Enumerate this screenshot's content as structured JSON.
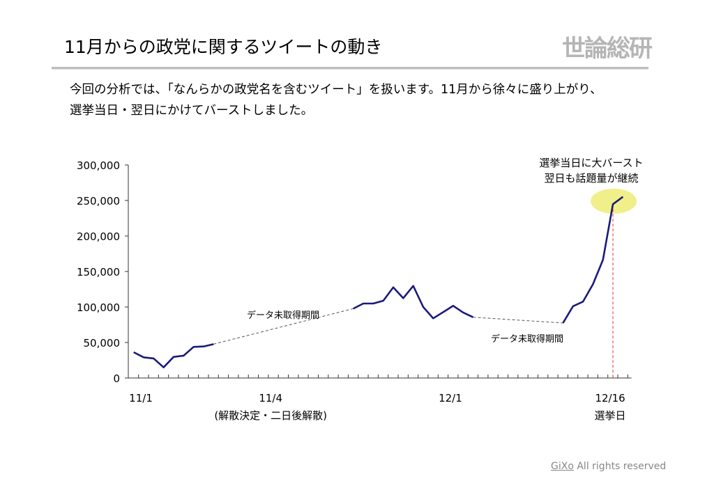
{
  "slide": {
    "title": "11月からの政党に関するツイートの動き",
    "logo": "世論総研",
    "description_line1": "今回の分析では、「なんらかの政党名を含むツイート」を扱います。11月から徐々に盛り上がり、",
    "description_line2": "選挙当日・翌日にかけてバーストしました。",
    "footer_brand": "GiXo",
    "footer_text": " All rights reserved"
  },
  "chart_data": {
    "type": "line",
    "ylim": [
      0,
      300000
    ],
    "yticks": [
      "0",
      "50,000",
      "100,000",
      "150,000",
      "200,000",
      "250,000",
      "300,000"
    ],
    "ytick_values": [
      0,
      50000,
      100000,
      150000,
      200000,
      250000,
      300000
    ],
    "xlim": [
      0,
      50
    ],
    "xtick_labels": [
      {
        "index": 1,
        "label": "11/1",
        "sub": ""
      },
      {
        "index": 14,
        "label": "11/4",
        "sub": "(解散決定・二日後解散)"
      },
      {
        "index": 32,
        "label": "12/1",
        "sub": ""
      },
      {
        "index": 48,
        "label": "12/16",
        "sub": "選挙日"
      }
    ],
    "series": [
      {
        "segments": [
          {
            "start": 0,
            "values": [
              36300,
              29100,
              27500,
              15000,
              29700,
              31400,
              43800,
              44400,
              47700
            ]
          },
          {
            "start": 22,
            "values": [
              97700,
              104900,
              104900,
              108800,
              127700,
              112400,
              129700,
              100000,
              84000,
              92800,
              101700,
              92200,
              85600
            ]
          },
          {
            "start": 43,
            "values": [
              77500,
              101000,
              107500,
              132100,
              166400,
              244800,
              255200
            ]
          }
        ]
      }
    ],
    "gaps": [
      {
        "from": 8,
        "to": 22,
        "label": "データ未取得期間"
      },
      {
        "from": 34,
        "to": 43,
        "label": "データ未取得期間"
      }
    ],
    "election_day_index": 48,
    "annotation": {
      "line1": "選挙当日に大バースト",
      "line2": "翌日も話題量が継続"
    },
    "grid": false,
    "legend": "none",
    "colors": {
      "line": "#1a1a7a",
      "highlight": "#f0ef8a",
      "marker_line": "#e03030",
      "gap_line": "#555555"
    }
  }
}
